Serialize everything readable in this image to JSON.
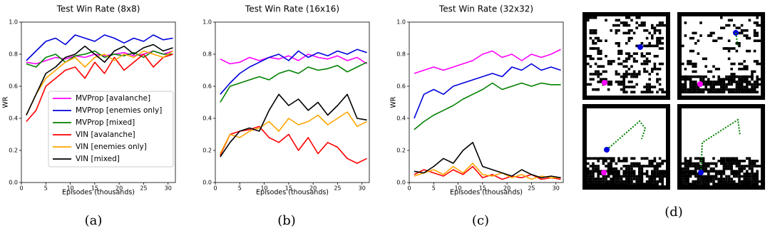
{
  "chart_data": [
    {
      "type": "line",
      "title": "Test Win Rate (8x8)",
      "x_label": "Episodes (thousands)",
      "y_label": "WR",
      "xlim": [
        0,
        31.5
      ],
      "xticks": [
        0,
        5,
        10,
        15,
        20,
        25,
        30
      ],
      "ylim": [
        0,
        1
      ],
      "yticks": [
        {
          "value": 0,
          "label": "0.0"
        },
        {
          "value": 0.2,
          "label": "0.2"
        },
        {
          "value": 0.4,
          "label": "0.4"
        },
        {
          "value": 0.6,
          "label": "0.6"
        },
        {
          "value": 0.8,
          "label": "0.8"
        },
        {
          "value": 1,
          "label": "1.0"
        }
      ],
      "legend": "lower center",
      "x": [
        1,
        3,
        5,
        7,
        9,
        11,
        13,
        15,
        17,
        19,
        21,
        23,
        25,
        27,
        29,
        31
      ],
      "series": [
        {
          "name": "MVProp [avalanche]",
          "color": "#ff00ff",
          "values": [
            0.75,
            0.74,
            0.76,
            0.78,
            0.77,
            0.79,
            0.78,
            0.8,
            0.79,
            0.8,
            0.81,
            0.79,
            0.8,
            0.82,
            0.8,
            0.82
          ]
        },
        {
          "name": "MVProp [enemies only]",
          "color": "#0000dd",
          "values": [
            0.76,
            0.82,
            0.88,
            0.9,
            0.86,
            0.92,
            0.9,
            0.88,
            0.92,
            0.9,
            0.87,
            0.9,
            0.88,
            0.92,
            0.89,
            0.9
          ]
        },
        {
          "name": "MVProp [mixed]",
          "color": "#008000",
          "values": [
            0.74,
            0.72,
            0.78,
            0.8,
            0.75,
            0.79,
            0.8,
            0.82,
            0.78,
            0.8,
            0.79,
            0.81,
            0.78,
            0.82,
            0.8,
            0.8
          ]
        },
        {
          "name": "VIN [avalanche]",
          "color": "#ff0000",
          "values": [
            0.38,
            0.45,
            0.6,
            0.65,
            0.7,
            0.72,
            0.65,
            0.75,
            0.68,
            0.78,
            0.7,
            0.75,
            0.8,
            0.72,
            0.78,
            0.8
          ]
        },
        {
          "name": "VIN [enemies only]",
          "color": "#ffa500",
          "values": [
            0.42,
            0.55,
            0.65,
            0.7,
            0.75,
            0.78,
            0.72,
            0.78,
            0.8,
            0.76,
            0.8,
            0.78,
            0.82,
            0.8,
            0.78,
            0.82
          ]
        },
        {
          "name": "VIN [mixed]",
          "color": "#000000",
          "values": [
            0.42,
            0.55,
            0.68,
            0.72,
            0.78,
            0.8,
            0.85,
            0.8,
            0.75,
            0.82,
            0.85,
            0.8,
            0.84,
            0.86,
            0.82,
            0.84
          ]
        }
      ]
    },
    {
      "type": "line",
      "title": "Test Win Rate (16x16)",
      "x_label": "Episodes (thousands)",
      "xlim": [
        0,
        31.5
      ],
      "xticks": [
        0,
        5,
        10,
        15,
        20,
        25,
        30
      ],
      "ylim": [
        0,
        1
      ],
      "yticks": [
        {
          "value": 0,
          "label": "0.0"
        },
        {
          "value": 0.2,
          "label": "0.2"
        },
        {
          "value": 0.4,
          "label": "0.4"
        },
        {
          "value": 0.6,
          "label": "0.6"
        },
        {
          "value": 0.8,
          "label": "0.8"
        },
        {
          "value": 1,
          "label": "1.0"
        }
      ],
      "x": [
        1,
        3,
        5,
        7,
        9,
        11,
        13,
        15,
        17,
        19,
        21,
        23,
        25,
        27,
        29,
        31
      ],
      "series": [
        {
          "color": "#ff00ff",
          "values": [
            0.77,
            0.74,
            0.75,
            0.78,
            0.76,
            0.78,
            0.77,
            0.79,
            0.76,
            0.8,
            0.78,
            0.77,
            0.79,
            0.76,
            0.78,
            0.74
          ]
        },
        {
          "color": "#0000dd",
          "values": [
            0.55,
            0.62,
            0.68,
            0.72,
            0.75,
            0.78,
            0.8,
            0.76,
            0.82,
            0.78,
            0.81,
            0.79,
            0.82,
            0.8,
            0.83,
            0.81
          ]
        },
        {
          "color": "#008000",
          "values": [
            0.5,
            0.6,
            0.62,
            0.64,
            0.66,
            0.64,
            0.68,
            0.7,
            0.68,
            0.72,
            0.7,
            0.71,
            0.73,
            0.69,
            0.72,
            0.75
          ]
        },
        {
          "color": "#ff0000",
          "values": [
            0.17,
            0.3,
            0.32,
            0.33,
            0.35,
            0.28,
            0.25,
            0.3,
            0.2,
            0.28,
            0.18,
            0.25,
            0.22,
            0.15,
            0.12,
            0.15
          ]
        },
        {
          "color": "#ffa500",
          "values": [
            0.18,
            0.3,
            0.28,
            0.32,
            0.34,
            0.38,
            0.32,
            0.4,
            0.36,
            0.38,
            0.42,
            0.36,
            0.4,
            0.44,
            0.35,
            0.38
          ]
        },
        {
          "color": "#000000",
          "values": [
            0.16,
            0.25,
            0.32,
            0.34,
            0.32,
            0.45,
            0.55,
            0.48,
            0.52,
            0.45,
            0.5,
            0.42,
            0.48,
            0.55,
            0.4,
            0.39
          ]
        }
      ]
    },
    {
      "type": "line",
      "title": "Test Win Rate (32x32)",
      "x_label": "Episodes (thousands)",
      "y_label": "WR",
      "xlim": [
        0,
        31.5
      ],
      "xticks": [
        0,
        5,
        10,
        15,
        20,
        25,
        30
      ],
      "ylim": [
        0,
        1
      ],
      "yticks": [
        {
          "value": 0,
          "label": "0.0"
        },
        {
          "value": 0.2,
          "label": "0.2"
        },
        {
          "value": 0.4,
          "label": "0.4"
        },
        {
          "value": 0.6,
          "label": "0.6"
        },
        {
          "value": 0.8,
          "label": "0.8"
        },
        {
          "value": 1,
          "label": "1.0"
        }
      ],
      "x": [
        1,
        3,
        5,
        7,
        9,
        11,
        13,
        15,
        17,
        19,
        21,
        23,
        25,
        27,
        29,
        31
      ],
      "series": [
        {
          "color": "#ff00ff",
          "values": [
            0.68,
            0.7,
            0.72,
            0.7,
            0.72,
            0.74,
            0.76,
            0.8,
            0.82,
            0.78,
            0.8,
            0.76,
            0.8,
            0.78,
            0.8,
            0.83
          ]
        },
        {
          "color": "#0000dd",
          "values": [
            0.4,
            0.55,
            0.58,
            0.55,
            0.6,
            0.62,
            0.64,
            0.66,
            0.68,
            0.66,
            0.72,
            0.7,
            0.74,
            0.7,
            0.72,
            0.7
          ]
        },
        {
          "color": "#008000",
          "values": [
            0.33,
            0.38,
            0.42,
            0.45,
            0.48,
            0.52,
            0.55,
            0.58,
            0.62,
            0.58,
            0.6,
            0.62,
            0.6,
            0.62,
            0.61,
            0.61
          ]
        },
        {
          "color": "#ff0000",
          "values": [
            0.05,
            0.08,
            0.06,
            0.04,
            0.08,
            0.05,
            0.1,
            0.03,
            0.05,
            0.02,
            0.04,
            0.03,
            0.05,
            0.02,
            0.03,
            0.02
          ]
        },
        {
          "color": "#ffa500",
          "values": [
            0.04,
            0.06,
            0.08,
            0.05,
            0.1,
            0.06,
            0.12,
            0.05,
            0.04,
            0.06,
            0.03,
            0.05,
            0.02,
            0.04,
            0.03,
            0.03
          ]
        },
        {
          "color": "#000000",
          "values": [
            0.07,
            0.06,
            0.1,
            0.15,
            0.12,
            0.2,
            0.25,
            0.1,
            0.08,
            0.06,
            0.04,
            0.08,
            0.05,
            0.03,
            0.04,
            0.03
          ]
        }
      ]
    }
  ],
  "captions": [
    "(a)",
    "(b)",
    "(c)",
    "(d)"
  ]
}
